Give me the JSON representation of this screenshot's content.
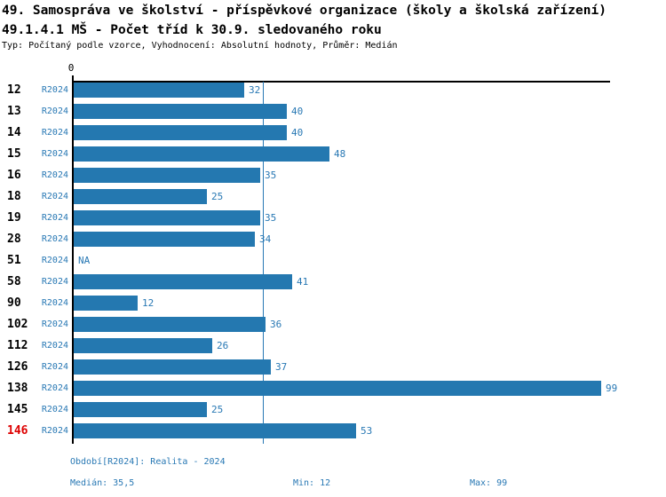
{
  "title_line1": "49. Samospráva ve školství - příspěvkové organizace (školy a školská zařízení)",
  "title_line2": "49.1.4.1 MŠ - Počet tříd k 30.9. sledovaného roku",
  "subtitle": "Typ: Počítaný podle vzorce, Vyhodnocení: Absolutní hodnoty, Průměr: Medián",
  "colors": {
    "bar_blue": "#2478b0",
    "text_blue": "#2878b4",
    "highlight_red": "#dd0000",
    "axis_black": "#000000"
  },
  "axis": {
    "zero_label": "0"
  },
  "footer": {
    "period": "Období[R2024]: Realita - 2024",
    "median": "Medián: 35,5",
    "min": "Min: 12",
    "max": "Max: 99"
  },
  "chart_data": {
    "type": "bar",
    "orientation": "horizontal",
    "title": "49.1.4.1 MŠ - Počet tříd k 30.9. sledovaného roku",
    "xlabel": "",
    "ylabel": "",
    "xlim": [
      0,
      100
    ],
    "x_axis_tick_labels": [
      "0"
    ],
    "grid": false,
    "legend_position": "none",
    "categories": [
      "12",
      "13",
      "14",
      "15",
      "16",
      "18",
      "19",
      "28",
      "51",
      "58",
      "90",
      "102",
      "112",
      "126",
      "138",
      "145",
      "146"
    ],
    "series": [
      {
        "name": "R2024",
        "values": [
          32,
          40,
          40,
          48,
          35,
          25,
          35,
          34,
          null,
          41,
          12,
          36,
          26,
          37,
          99,
          25,
          53
        ]
      }
    ],
    "value_labels": [
      "32",
      "40",
      "40",
      "48",
      "35",
      "25",
      "35",
      "34",
      "NA",
      "41",
      "12",
      "36",
      "26",
      "37",
      "99",
      "25",
      "53"
    ],
    "median_line_value": 35.5,
    "highlighted_categories": [
      "146"
    ],
    "statistics": {
      "median": "35,5",
      "min": 12,
      "max": 99
    }
  }
}
